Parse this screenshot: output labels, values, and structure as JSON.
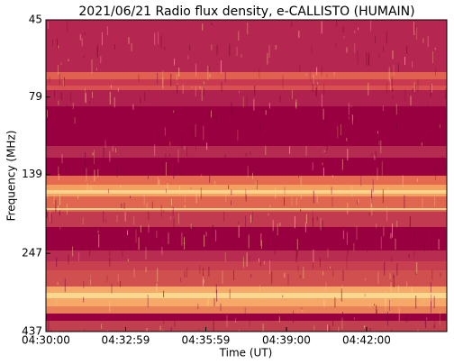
{
  "chart_data": {
    "type": "spectrogram",
    "title": "2021/06/21  Radio flux density, e-CALLISTO (HUMAIN)",
    "x_label": "Time (UT)",
    "y_label": "Frequency (MHz)",
    "xlim": [
      "04:30:00",
      "04:45:00"
    ],
    "xticks": [
      "04:30:00",
      "04:32:59",
      "04:35:59",
      "04:39:00",
      "04:42:00"
    ],
    "ylim": [
      45,
      437
    ],
    "yticks": [
      45,
      79,
      139,
      247,
      437
    ],
    "ylog": true,
    "yinvert": true
  }
}
